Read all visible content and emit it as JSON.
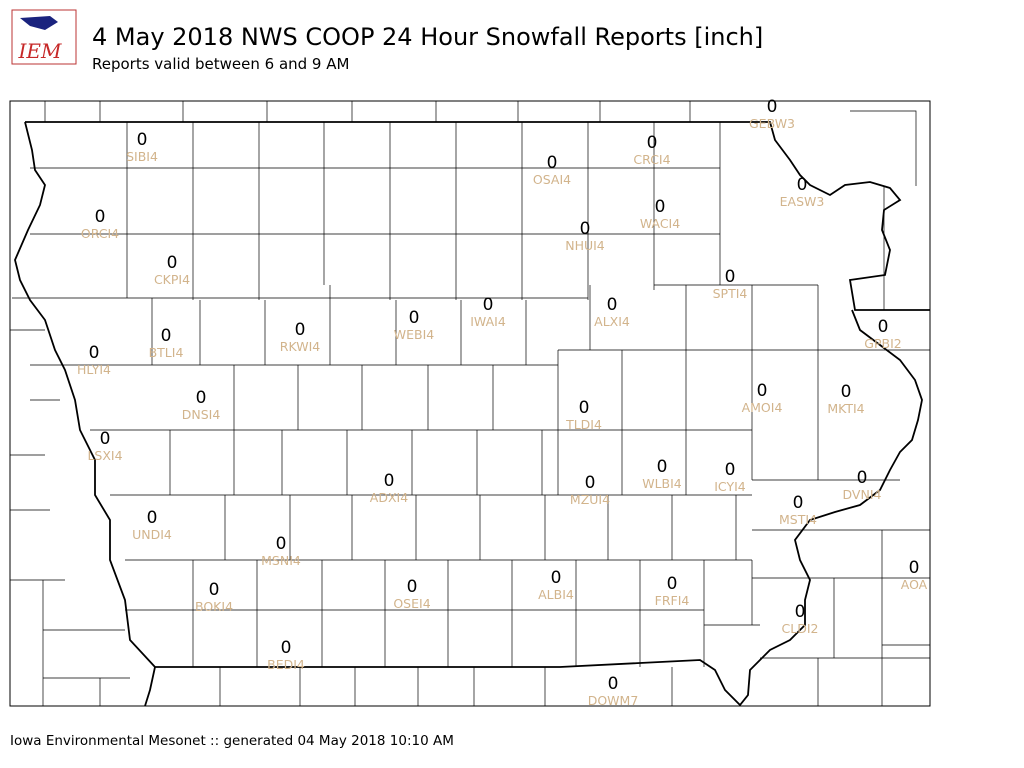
{
  "logo": {
    "text": "IEM"
  },
  "header": {
    "title": "4 May 2018 NWS COOP 24 Hour Snowfall Reports [inch]",
    "subtitle": "Reports valid between 6 and 9 AM"
  },
  "footer": "Iowa Environmental Mesonet :: generated 04 May 2018 10:10 AM",
  "stations": [
    {
      "id": "SIBI4",
      "value": 0
    },
    {
      "id": "ORCI4",
      "value": 0
    },
    {
      "id": "CKPI4",
      "value": 0
    },
    {
      "id": "BTLI4",
      "value": 0
    },
    {
      "id": "HLYI4",
      "value": 0
    },
    {
      "id": "RKWI4",
      "value": 0
    },
    {
      "id": "WEBI4",
      "value": 0
    },
    {
      "id": "IWAI4",
      "value": 0
    },
    {
      "id": "ALXI4",
      "value": 0
    },
    {
      "id": "OSAI4",
      "value": 0
    },
    {
      "id": "CRCI4",
      "value": 0
    },
    {
      "id": "GEBW3",
      "value": 0
    },
    {
      "id": "EASW3",
      "value": 0
    },
    {
      "id": "WACI4",
      "value": 0
    },
    {
      "id": "NHUI4",
      "value": 0
    },
    {
      "id": "SPTI4",
      "value": 0
    },
    {
      "id": "GPBI2",
      "value": 0
    },
    {
      "id": "DNSI4",
      "value": 0
    },
    {
      "id": "LSXI4",
      "value": 0
    },
    {
      "id": "TLDI4",
      "value": 0
    },
    {
      "id": "AMOI4",
      "value": 0
    },
    {
      "id": "MKTI4",
      "value": 0
    },
    {
      "id": "ADXI4",
      "value": 0
    },
    {
      "id": "MZUI4",
      "value": 0
    },
    {
      "id": "WLBI4",
      "value": 0
    },
    {
      "id": "ICYI4",
      "value": 0
    },
    {
      "id": "DVNI4",
      "value": 0
    },
    {
      "id": "MSTI4",
      "value": 0
    },
    {
      "id": "UNDI4",
      "value": 0
    },
    {
      "id": "MSNI4",
      "value": 0
    },
    {
      "id": "AOA",
      "value": 0
    },
    {
      "id": "BOKI4",
      "value": 0
    },
    {
      "id": "OSEI4",
      "value": 0
    },
    {
      "id": "ALBI4",
      "value": 0
    },
    {
      "id": "FRFI4",
      "value": 0
    },
    {
      "id": "CLDI2",
      "value": 0
    },
    {
      "id": "BEDI4",
      "value": 0
    },
    {
      "id": "DOWM7",
      "value": 0
    }
  ]
}
